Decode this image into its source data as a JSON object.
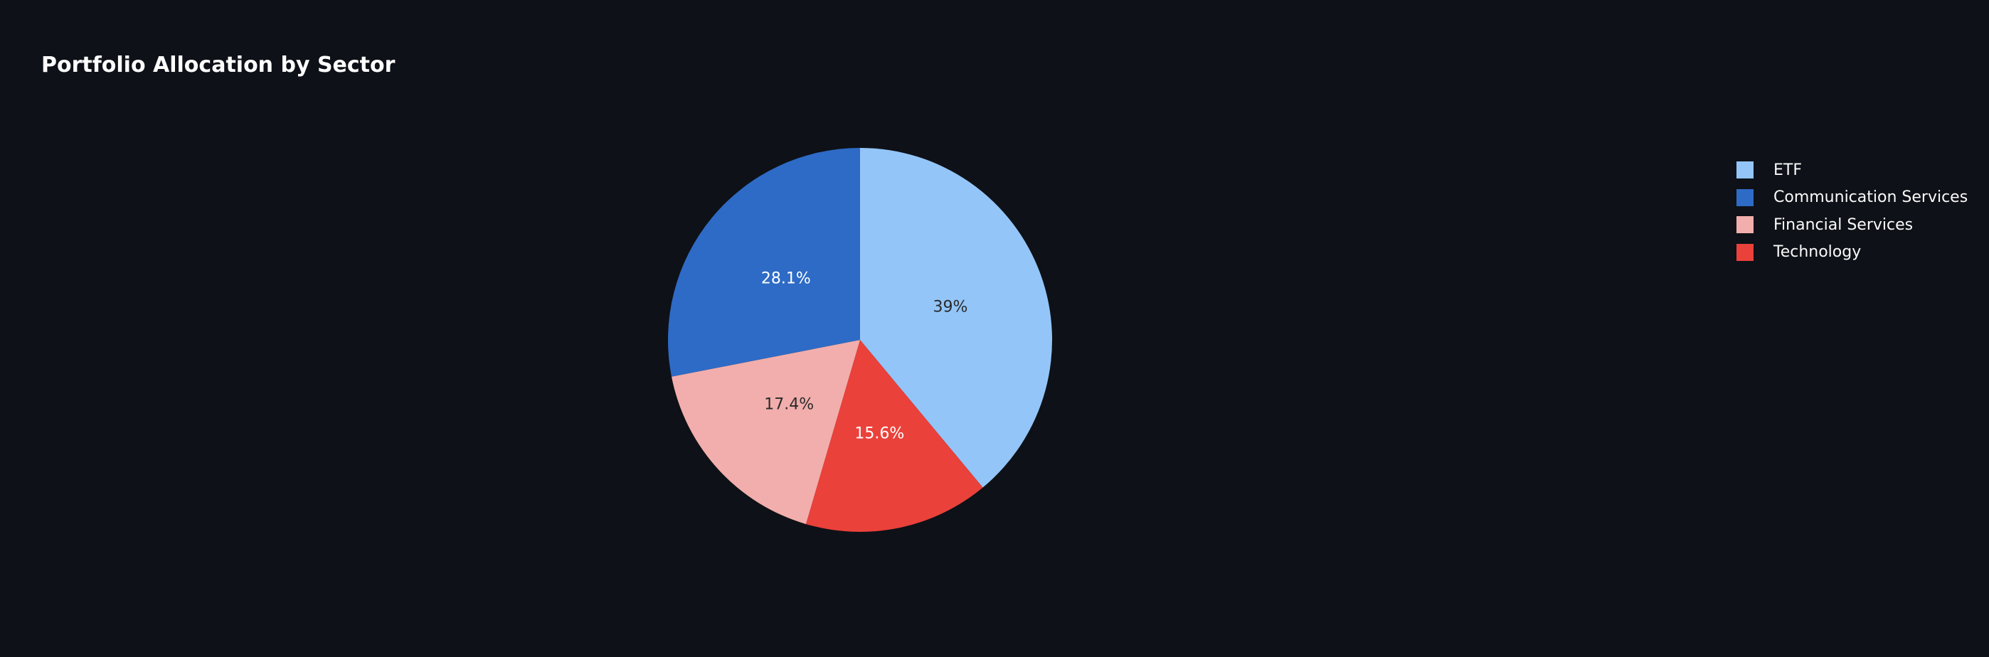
{
  "chart_data": {
    "type": "pie",
    "title": "Portfolio Allocation by Sector",
    "categories": [
      "ETF",
      "Communication Services",
      "Financial Services",
      "Technology"
    ],
    "values": [
      39.0,
      28.1,
      17.4,
      15.6
    ],
    "value_labels": [
      "39%",
      "28.1%",
      "17.4%",
      "15.6%"
    ],
    "slice_order_clockwise_from_top": [
      "ETF",
      "Technology",
      "Financial Services",
      "Communication Services"
    ],
    "colors": {
      "ETF": "#93c5f8",
      "Communication Services": "#2e6bc6",
      "Financial Services": "#f2aeac",
      "Technology": "#ea413b"
    },
    "label_colors": {
      "ETF": "#2a2a2a",
      "Communication Services": "#ffffff",
      "Financial Services": "#2a2a2a",
      "Technology": "#ffffff"
    },
    "legend_placement": "top-right",
    "background": "#0e1117"
  }
}
